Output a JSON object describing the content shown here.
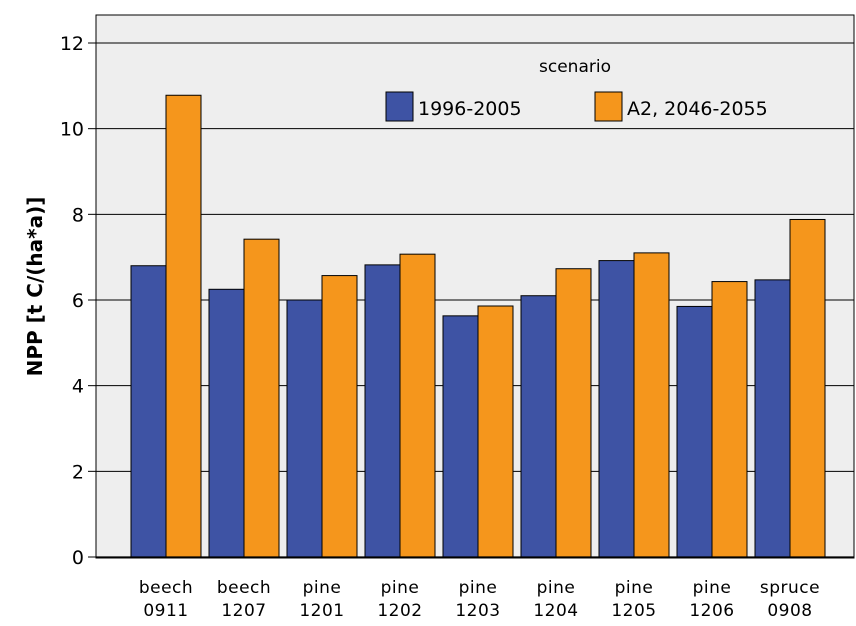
{
  "chart_data": {
    "type": "bar",
    "ylabel": "NPP [t C/(ha*a)]",
    "ylim": [
      0,
      12
    ],
    "yticks": [
      "0",
      "2",
      "4",
      "6",
      "8",
      "10",
      "12"
    ],
    "grid": true,
    "legend_title": "scenario",
    "legend_position": "top-right",
    "categories": [
      [
        "beech",
        "0911"
      ],
      [
        "beech",
        "1207"
      ],
      [
        "pine",
        "1201"
      ],
      [
        "pine",
        "1202"
      ],
      [
        "pine",
        "1203"
      ],
      [
        "pine",
        "1204"
      ],
      [
        "pine",
        "1205"
      ],
      [
        "pine",
        "1206"
      ],
      [
        "spruce",
        "0908"
      ]
    ],
    "series": [
      {
        "name": "1996-2005",
        "color": "#3e53a4",
        "values": [
          6.8,
          6.25,
          6.0,
          6.82,
          5.63,
          6.1,
          6.92,
          5.85,
          6.47
        ]
      },
      {
        "name": "A2, 2046-2055",
        "color": "#f5961c",
        "values": [
          10.78,
          7.42,
          6.57,
          7.07,
          5.86,
          6.73,
          7.1,
          6.43,
          7.88
        ]
      }
    ],
    "colors": {
      "plot_background": "#eeeeee",
      "gridline": "#000000"
    }
  }
}
